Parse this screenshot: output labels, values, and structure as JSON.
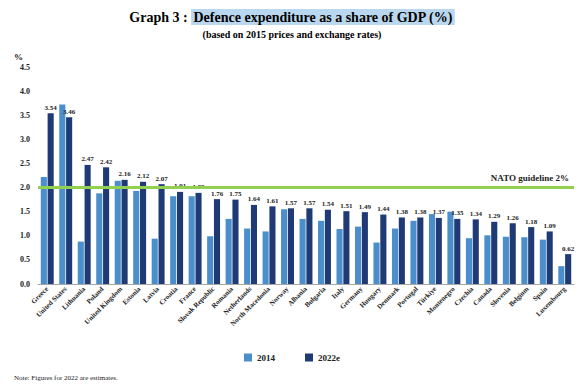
{
  "chart_data": {
    "type": "bar",
    "title": "Graph 3 : Defence expenditure as a share of GDP (%)",
    "subtitle": "(based on 2015 prices and exchange rates)",
    "ylabel": "%",
    "note": "Note: Figures for 2022 are estimates.",
    "categories": [
      "Greece",
      "United States",
      "Lithuania",
      "Poland",
      "United Kingdom",
      "Estonia",
      "Latvia",
      "Croatia",
      "France",
      "Slovak Republic",
      "Romania",
      "Netherlands",
      "North Macedonia",
      "Norway",
      "Albania",
      "Bulgaria",
      "Italy",
      "Germany",
      "Hungary",
      "Denmark",
      "Portugal",
      "Türkiye",
      "Montenegro",
      "Czechia",
      "Canada",
      "Slovenia",
      "Belgium",
      "Spain",
      "Luxembourg"
    ],
    "series": [
      {
        "name": "2014",
        "color": "#4a8fcc",
        "data_labels": false,
        "values": [
          2.22,
          3.72,
          0.88,
          1.88,
          2.14,
          1.93,
          0.94,
          1.82,
          1.82,
          0.99,
          1.35,
          1.15,
          1.09,
          1.55,
          1.35,
          1.31,
          1.14,
          1.19,
          0.86,
          1.15,
          1.31,
          1.45,
          1.5,
          0.95,
          1.01,
          0.98,
          0.97,
          0.92,
          0.37
        ]
      },
      {
        "name": "2022e",
        "color": "#1f3a75",
        "data_labels": true,
        "values": [
          3.54,
          3.46,
          2.47,
          2.42,
          2.16,
          2.12,
          2.07,
          1.91,
          1.89,
          1.76,
          1.75,
          1.64,
          1.61,
          1.57,
          1.57,
          1.54,
          1.51,
          1.49,
          1.44,
          1.38,
          1.38,
          1.37,
          1.35,
          1.34,
          1.29,
          1.26,
          1.18,
          1.09,
          0.62
        ]
      }
    ],
    "ylim": [
      0,
      4.5
    ],
    "yticks": [
      {
        "value": 0,
        "label": "0.0"
      },
      0.5,
      {
        "value": 1,
        "label": "1.0"
      },
      1.5,
      {
        "value": 2,
        "label": "2.0"
      },
      2.5,
      {
        "value": 3,
        "label": "3.0"
      },
      3.5,
      {
        "value": 4,
        "label": "4.0"
      },
      4.5
    ],
    "reference_line": {
      "value": 2,
      "label": "NATO guideline 2%",
      "color": "#92d050"
    },
    "grid": false,
    "legend": "bottom"
  }
}
